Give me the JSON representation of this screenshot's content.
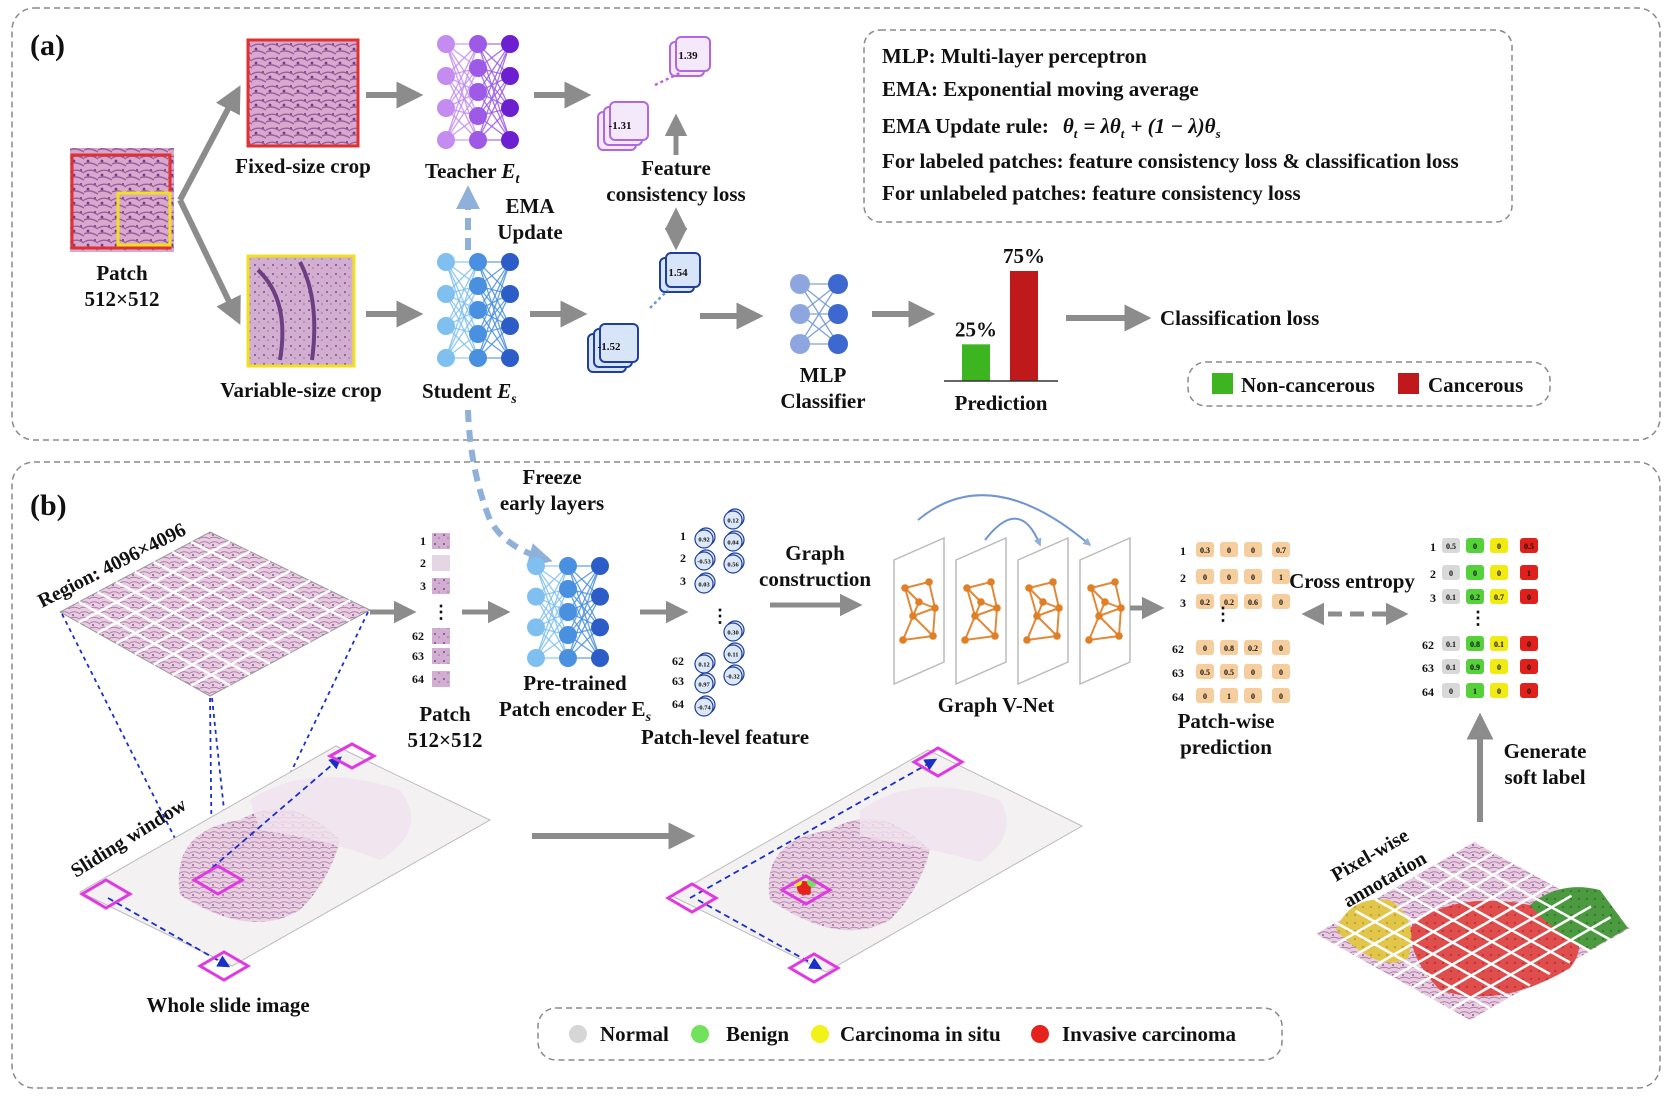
{
  "panel_a": {
    "tag": "(a)",
    "patch_title": "Patch",
    "patch_size": "512×512",
    "fixed_crop": "Fixed-size crop",
    "variable_crop": "Variable-size crop",
    "teacher": "Teacher",
    "teacher_sym": "E",
    "teacher_sub": "t",
    "student": "Student",
    "student_sym": "E",
    "student_sub": "s",
    "ema_update": [
      "EMA",
      "Update"
    ],
    "feature_loss": [
      "Feature",
      "consistency loss"
    ],
    "teacher_feat": {
      "top": "1.39",
      "bottom": "-1.31"
    },
    "student_feat": {
      "top": "1.54",
      "bottom": "-1.52"
    },
    "mlp": [
      "MLP",
      "Classifier"
    ],
    "prediction": {
      "label": "Prediction",
      "bars": [
        {
          "name": "Non-cancerous",
          "value": 25,
          "text": "25%",
          "color": "#3cb521"
        },
        {
          "name": "Cancerous",
          "value": 75,
          "text": "75%",
          "color": "#c0191b"
        }
      ]
    },
    "classification_loss": "Classification loss",
    "info_box": [
      "MLP: Multi-layer perceptron",
      "EMA: Exponential moving average",
      "EMA Update rule:",
      "θ",
      "t",
      "= λθ",
      "t",
      "+ (1 − λ)θ",
      "s",
      "For labeled patches: feature consistency loss & classification loss",
      "For unlabeled patches: feature consistency loss"
    ],
    "legend": [
      {
        "label": "Non-cancerous",
        "color": "#3cb521"
      },
      {
        "label": "Cancerous",
        "color": "#c0191b"
      }
    ]
  },
  "panel_b": {
    "tag": "(b)",
    "region": "Region: 4096×4096",
    "freeze": [
      "Freeze",
      "early layers"
    ],
    "sliding_window": "Sliding window",
    "wsi": "Whole slide image",
    "patch_ids": [
      "1",
      "2",
      "3",
      "62",
      "63",
      "64"
    ],
    "patch_label": [
      "Patch",
      "512×512"
    ],
    "encoder": [
      "Pre-trained",
      "Patch encoder E",
      "s"
    ],
    "feature_label": "Patch-level feature",
    "feat_top": [
      [
        "0.92",
        "0.12"
      ],
      [
        "-0.53",
        "0.04"
      ],
      [
        "0.03",
        "0.56"
      ]
    ],
    "feat_bottom": [
      [
        "0.12",
        "0.30"
      ],
      [
        "0.97",
        "0.11"
      ],
      [
        "-0.74",
        "-0.32"
      ]
    ],
    "graph_construction": [
      "Graph",
      "construction"
    ],
    "gvnet": "Graph V-Net",
    "pred_rows": [
      {
        "id": "1",
        "vals": [
          "0.3",
          "0",
          "0",
          "0.7"
        ]
      },
      {
        "id": "2",
        "vals": [
          "0",
          "0",
          "0",
          "1"
        ]
      },
      {
        "id": "3",
        "vals": [
          "0.2",
          "0.2",
          "0.6",
          "0"
        ]
      },
      {
        "id": "62",
        "vals": [
          "0",
          "0.8",
          "0.2",
          "0"
        ]
      },
      {
        "id": "63",
        "vals": [
          "0.5",
          "0.5",
          "0",
          "0"
        ]
      },
      {
        "id": "64",
        "vals": [
          "0",
          "1",
          "0",
          "0"
        ]
      }
    ],
    "pred_label": [
      "Patch-wise",
      "prediction"
    ],
    "cross_entropy": "Cross entropy",
    "soft_rows": [
      {
        "id": "1",
        "vals": [
          "0.5",
          "0",
          "0",
          "0.5"
        ]
      },
      {
        "id": "2",
        "vals": [
          "0",
          "0",
          "0",
          "1"
        ]
      },
      {
        "id": "3",
        "vals": [
          "0.1",
          "0.2",
          "0.7",
          "0"
        ]
      },
      {
        "id": "62",
        "vals": [
          "0.1",
          "0.8",
          "0.1",
          "0"
        ]
      },
      {
        "id": "63",
        "vals": [
          "0.1",
          "0.9",
          "0",
          "0"
        ]
      },
      {
        "id": "64",
        "vals": [
          "0",
          "1",
          "0",
          "0"
        ]
      }
    ],
    "soft_colors": [
      "#d8d8d8",
      "#55d13a",
      "#f2ea13",
      "#e0201a"
    ],
    "generate": [
      "Generate",
      "soft label"
    ],
    "pixel_annotation": [
      "Pixel-wise",
      "annotation"
    ],
    "legend": [
      {
        "label": "Normal",
        "color": "#d6d6d6"
      },
      {
        "label": "Benign",
        "color": "#72e25d"
      },
      {
        "label": "Carcinoma in situ",
        "color": "#f4f01a"
      },
      {
        "label": "Invasive carcinoma",
        "color": "#e5231c"
      }
    ]
  },
  "colors": {
    "teacher": "#8a3fe0",
    "student": "#3c7fe0",
    "arrow": "#8c8c8c",
    "window": "#e039e0"
  }
}
